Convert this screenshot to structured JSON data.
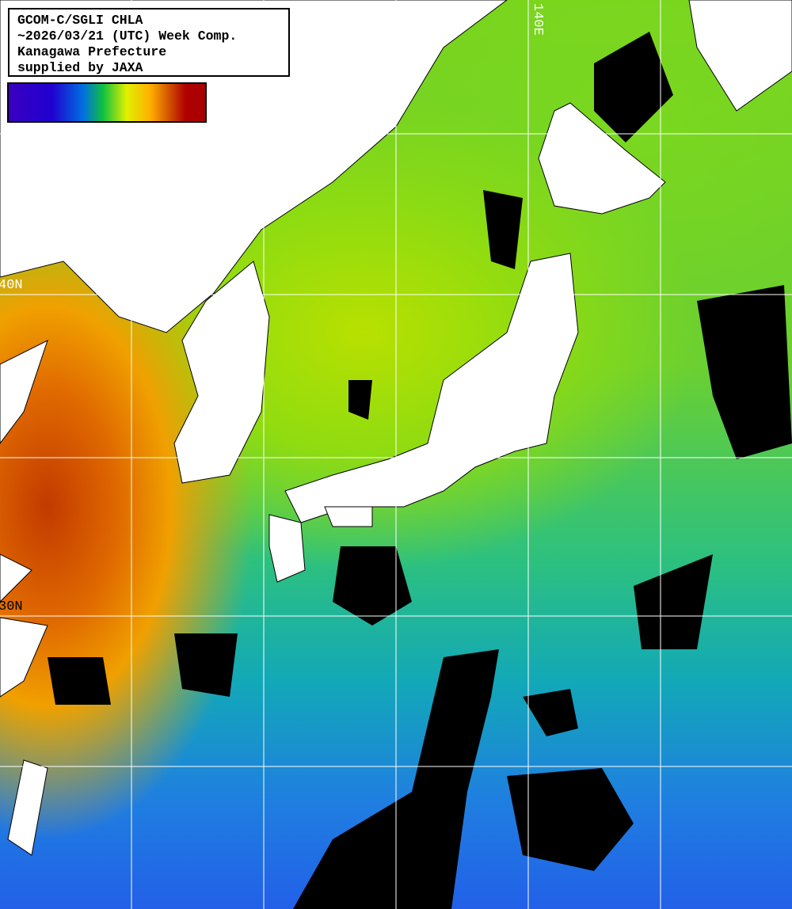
{
  "title": {
    "lines": [
      "GCOM-C/SGLI CHLA",
      "~2026/03/21 (UTC) Week Comp.",
      "Kanagawa Prefecture",
      "supplied by JAXA"
    ]
  },
  "colorbar": {
    "colors": [
      "#3a00c0",
      "#2000d0",
      "#0070e0",
      "#10c040",
      "#e0f000",
      "#ffb000",
      "#d05000",
      "#b00000"
    ]
  },
  "graticule": {
    "lon_label": "140E",
    "lat_labels": [
      "40N",
      "30N"
    ]
  },
  "colors": {
    "land": "#ffffff",
    "no_data": "#000000",
    "grid": "#ffffff"
  }
}
